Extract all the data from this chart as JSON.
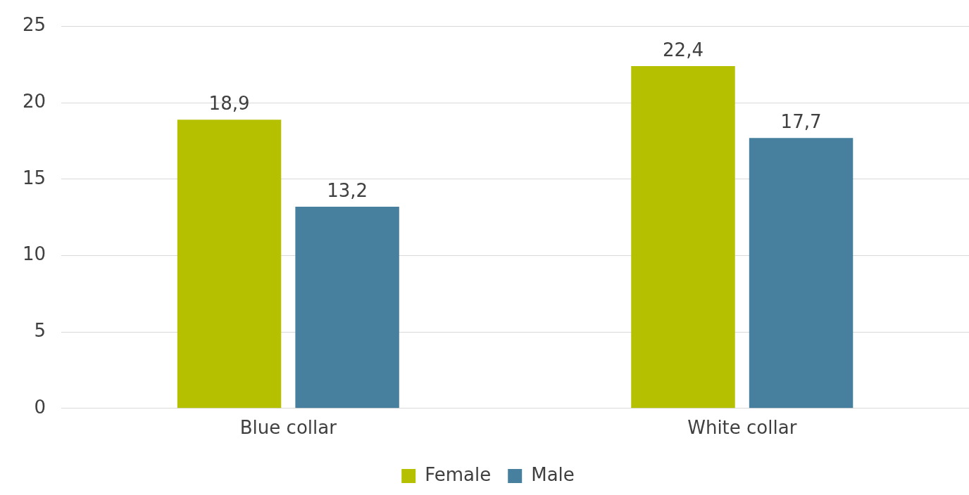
{
  "chart_data": {
    "type": "bar",
    "categories": [
      "Blue collar",
      "White collar"
    ],
    "series": [
      {
        "name": "Female",
        "color": "#b5c000",
        "values": [
          18.9,
          22.4
        ],
        "value_labels": [
          "18,9",
          "22,4"
        ]
      },
      {
        "name": "Male",
        "color": "#46809e",
        "values": [
          13.2,
          17.7
        ],
        "value_labels": [
          "13,2",
          "17,7"
        ]
      }
    ],
    "ylim": [
      0,
      25
    ],
    "yticks": [
      0,
      5,
      10,
      15,
      20,
      25
    ],
    "grid": "y",
    "legend": "bottom"
  }
}
